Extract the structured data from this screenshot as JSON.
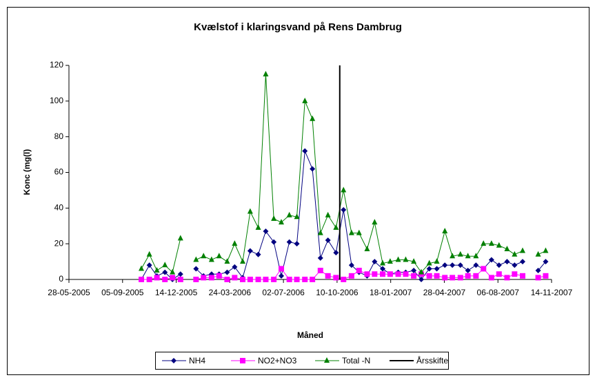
{
  "chart_data": {
    "type": "line",
    "title": "Kvælstof i klaringsvand på Rens Dambrug",
    "xlabel": "Måned",
    "ylabel": "Konc (mg(l)",
    "x": [
      "2005-10-10",
      "2005-10-25",
      "2005-11-08",
      "2005-11-23",
      "2005-12-07",
      "2005-12-22",
      "2006-01-05",
      "2006-01-20",
      "2006-02-03",
      "2006-02-18",
      "2006-03-04",
      "2006-03-19",
      "2006-04-02",
      "2006-04-17",
      "2006-05-01",
      "2006-05-16",
      "2006-05-30",
      "2006-06-14",
      "2006-06-28",
      "2006-07-13",
      "2006-07-27",
      "2006-08-11",
      "2006-08-25",
      "2006-09-09",
      "2006-09-23",
      "2006-10-08",
      "2006-10-22",
      "2006-11-06",
      "2006-11-20",
      "2006-12-05",
      "2006-12-19",
      "2007-01-03",
      "2007-01-17",
      "2007-02-01",
      "2007-02-15",
      "2007-03-02",
      "2007-03-16",
      "2007-03-31",
      "2007-04-14",
      "2007-04-29",
      "2007-05-13",
      "2007-05-28",
      "2007-06-11",
      "2007-06-26",
      "2007-07-10",
      "2007-07-25",
      "2007-08-08",
      "2007-08-23",
      "2007-09-06",
      "2007-09-21",
      "2007-10-05",
      "2007-10-20",
      "2007-11-03"
    ],
    "series": [
      {
        "name": "NH4",
        "color": "#000080",
        "marker": "diamond",
        "values": [
          0,
          8,
          2,
          4,
          0,
          3,
          null,
          6,
          2,
          3,
          3,
          4,
          7,
          1,
          16,
          14,
          27,
          21,
          2,
          21,
          20,
          72,
          62,
          12,
          22,
          15,
          39,
          8,
          4,
          2,
          10,
          6,
          3,
          4,
          4,
          5,
          0,
          6,
          6,
          8,
          8,
          8,
          5,
          8,
          6,
          11,
          8,
          10,
          8,
          10,
          null,
          5,
          10
        ]
      },
      {
        "name": "NO2+NO3",
        "color": "#ff00ff",
        "marker": "square",
        "values": [
          0,
          0,
          1,
          0,
          1,
          0,
          null,
          0,
          1,
          1,
          2,
          0,
          1,
          0,
          0,
          0,
          0,
          0,
          6,
          0,
          0,
          0,
          0,
          5,
          2,
          1,
          0,
          2,
          5,
          3,
          3,
          3,
          3,
          3,
          3,
          2,
          3,
          2,
          2,
          1,
          1,
          1,
          2,
          2,
          6,
          1,
          3,
          1,
          3,
          2,
          null,
          1,
          2
        ]
      },
      {
        "name": "Total -N",
        "color": "#008000",
        "marker": "triangle",
        "values": [
          6,
          14,
          5,
          8,
          4,
          23,
          null,
          11,
          13,
          11,
          13,
          10,
          20,
          10,
          38,
          29,
          115,
          34,
          32,
          36,
          35,
          100,
          90,
          26,
          36,
          29,
          50,
          26,
          26,
          17,
          32,
          9,
          10,
          11,
          11,
          10,
          4,
          9,
          10,
          27,
          13,
          14,
          13,
          13,
          20,
          20,
          19,
          17,
          14,
          16,
          null,
          14,
          16
        ]
      },
      {
        "name": "Årsskifte",
        "color": "#000000",
        "marker": "none",
        "x": [
          "2006-10-15",
          "2006-10-15"
        ],
        "values": [
          0,
          120
        ]
      }
    ],
    "xlim": [
      "2005-05-28",
      "2007-11-14"
    ],
    "xticks": [
      {
        "value": "2005-05-28",
        "label": "28-05-2005"
      },
      {
        "value": "2005-09-05",
        "label": "05-09-2005"
      },
      {
        "value": "2005-12-14",
        "label": "14-12-2005"
      },
      {
        "value": "2006-03-24",
        "label": "24-03-2006"
      },
      {
        "value": "2006-07-02",
        "label": "02-07-2006"
      },
      {
        "value": "2006-10-10",
        "label": "10-10-2006"
      },
      {
        "value": "2007-01-18",
        "label": "18-01-2007"
      },
      {
        "value": "2007-04-28",
        "label": "28-04-2007"
      },
      {
        "value": "2007-08-06",
        "label": "06-08-2007"
      },
      {
        "value": "2007-11-14",
        "label": "14-11-2007"
      }
    ],
    "ylim": [
      0,
      120
    ],
    "yticks": [
      0,
      20,
      40,
      60,
      80,
      100,
      120
    ],
    "legend": "bottom"
  }
}
